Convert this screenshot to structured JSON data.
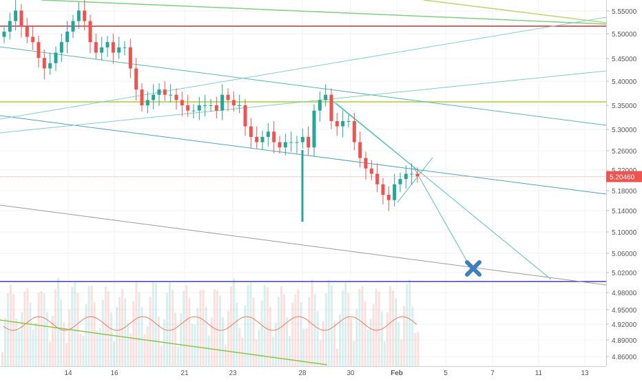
{
  "chart_data": {
    "type": "candlestick",
    "price_axis": {
      "ticks": [
        "5.55000",
        "5.50000",
        "5.45000",
        "5.40000",
        "5.35000",
        "5.30000",
        "5.26000",
        "5.22000",
        "5.18000",
        "5.14000",
        "5.10000",
        "5.06000",
        "5.02000",
        "4.98000",
        "4.95000",
        "4.92000",
        "4.89000",
        "4.86000"
      ],
      "current_price_label": "5.20460",
      "current_price": 5.2046
    },
    "time_axis": {
      "ticks": [
        "14",
        "16",
        "21",
        "23",
        "28",
        "30",
        "Feb",
        "5",
        "7",
        "11",
        "13"
      ]
    },
    "candles_close": [
      5.48,
      5.5,
      5.52,
      5.49,
      5.47,
      5.46,
      5.43,
      5.41,
      5.42,
      5.44,
      5.46,
      5.48,
      5.5,
      5.52,
      5.5,
      5.46,
      5.44,
      5.45,
      5.46,
      5.44,
      5.45,
      5.45,
      5.41,
      5.37,
      5.34,
      5.35,
      5.36,
      5.37,
      5.36,
      5.36,
      5.35,
      5.34,
      5.33,
      5.33,
      5.34,
      5.34,
      5.34,
      5.33,
      5.36,
      5.35,
      5.34,
      5.34,
      5.3,
      5.28,
      5.27,
      5.28,
      5.29,
      5.27,
      5.26,
      5.27,
      5.27,
      5.27,
      5.28,
      5.26,
      5.33,
      5.35,
      5.36,
      5.31,
      5.3,
      5.31,
      5.31,
      5.27,
      5.24,
      5.22,
      5.21,
      5.19,
      5.17,
      5.16,
      5.19,
      5.2,
      5.21,
      5.21,
      5.205
    ],
    "colors": {
      "up": "#26a69a",
      "down": "#ef5350",
      "price_label_bg": "#ef5350",
      "support_line": "#3f3fbf",
      "resistance_line": "#d32f2f",
      "target_marker": "#3f7fbf"
    },
    "annotations": {
      "target_marker": "x-mark",
      "horizontal_levels": [
        5.515,
        5.359,
        5.004
      ]
    },
    "grid": true
  }
}
